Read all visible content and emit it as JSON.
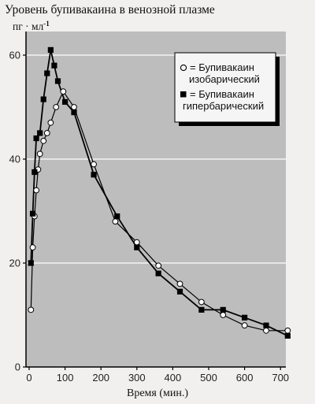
{
  "chart_data": {
    "type": "line",
    "title": "Уровень бупивакаина в венозной плазме",
    "ylabel_unit": "пг · мл",
    "ylabel_unit_exp": "-1",
    "xlabel": "Время (мин.)",
    "xlim": [
      0,
      740
    ],
    "ylim": [
      0,
      64
    ],
    "x_ticks": [
      0,
      100,
      200,
      300,
      400,
      500,
      600,
      700
    ],
    "y_ticks": [
      0,
      20,
      40,
      60
    ],
    "grid": "horizontal",
    "legend_position": "top-right",
    "series": [
      {
        "name": "= Бупивакаин изобарический",
        "marker": "open-circle",
        "color": "#000000",
        "x": [
          5,
          10,
          15,
          20,
          25,
          30,
          40,
          50,
          60,
          75,
          95,
          125,
          180,
          240,
          300,
          360,
          420,
          480,
          540,
          600,
          660,
          720
        ],
        "y": [
          11,
          23,
          29,
          34,
          38,
          41,
          43.5,
          45,
          47,
          50,
          53,
          50,
          39,
          28,
          24,
          19.5,
          16,
          12.5,
          10,
          8,
          7,
          7
        ]
      },
      {
        "name": "= Бупивакаин гипербарический",
        "marker": "filled-square",
        "color": "#000000",
        "x": [
          5,
          10,
          15,
          20,
          30,
          40,
          50,
          60,
          70,
          80,
          100,
          125,
          180,
          245,
          300,
          360,
          420,
          480,
          540,
          600,
          660,
          720
        ],
        "y": [
          20,
          29.5,
          37.5,
          44,
          45,
          51.5,
          56.5,
          61,
          58,
          55,
          51,
          49,
          37,
          29,
          23,
          18,
          14.5,
          11,
          11,
          9.5,
          8,
          6
        ]
      }
    ]
  }
}
